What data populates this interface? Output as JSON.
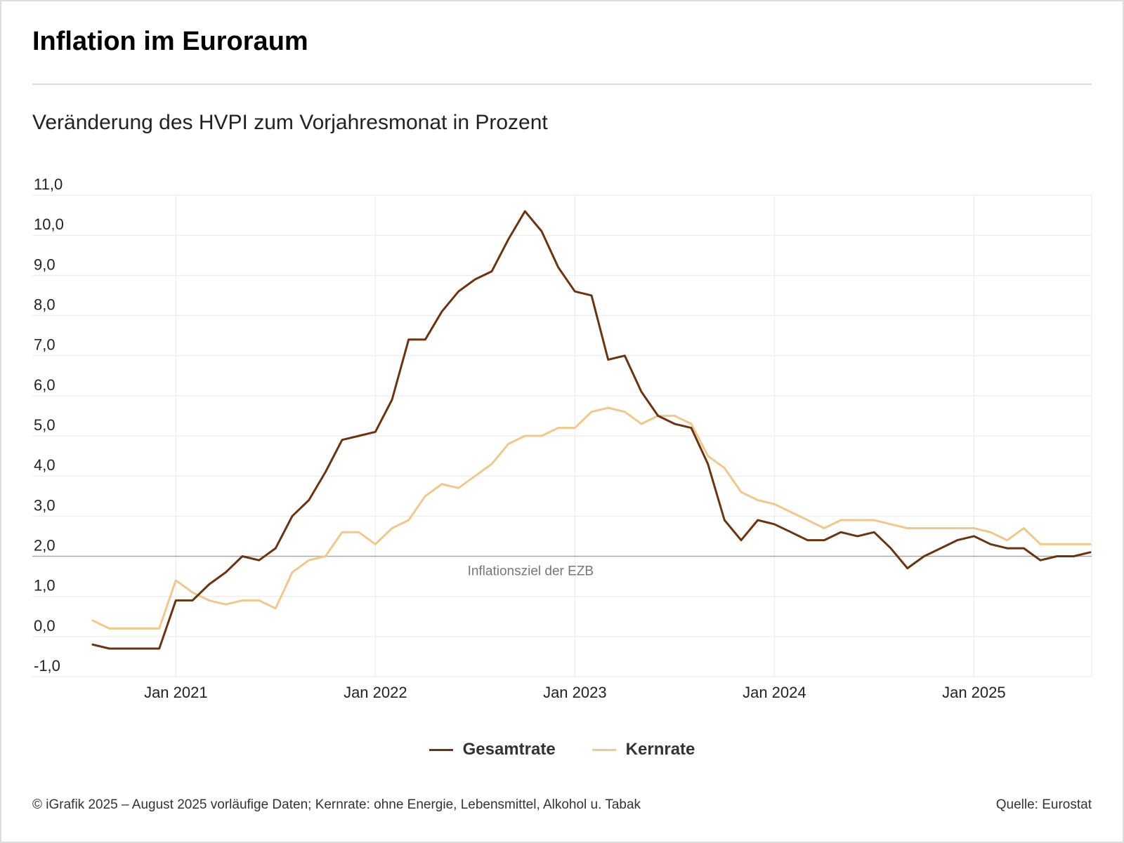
{
  "header": {
    "title": "Inflation im Euroraum",
    "subtitle": "Veränderung des HVPI zum Vorjahresmonat in Prozent"
  },
  "footer": {
    "note": "© iGrafik 2025 – August 2025 vorläufige Daten; Kernrate: ohne Energie, Lebensmittel, Alkohol u. Tabak",
    "source": "Quelle: Eurostat"
  },
  "colors": {
    "gesamtrate": "#6b3410",
    "kernrate": "#f0c98a",
    "grid": "#ececec",
    "target_line": "#aaaaaa"
  },
  "chart_data": {
    "type": "line",
    "title": "Inflation im Euroraum",
    "subtitle": "Veränderung des HVPI zum Vorjahresmonat in Prozent",
    "ylim": [
      -1.0,
      11.0
    ],
    "y_ticks": [
      "11,0",
      "10,0",
      "9,0",
      "8,0",
      "7,0",
      "6,0",
      "5,0",
      "4,0",
      "3,0",
      "2,0",
      "1,0",
      "0,0",
      "-1,0"
    ],
    "y_tick_values": [
      11,
      10,
      9,
      8,
      7,
      6,
      5,
      4,
      3,
      2,
      1,
      0,
      -1
    ],
    "x_start": "2020-08",
    "x_end": "2025-08",
    "x_ticks": [
      {
        "label": "Jan 2021",
        "date": "2021-01"
      },
      {
        "label": "Jan 2022",
        "date": "2022-01"
      },
      {
        "label": "Jan 2023",
        "date": "2023-01"
      },
      {
        "label": "Jan 2024",
        "date": "2024-01"
      },
      {
        "label": "Jan 2025",
        "date": "2025-01"
      }
    ],
    "grid": true,
    "legend_position": "bottom",
    "reference_line": {
      "value": 2.0,
      "label": "Inflationsziel der EZB"
    },
    "x": [
      "2020-08",
      "2020-09",
      "2020-10",
      "2020-11",
      "2020-12",
      "2021-01",
      "2021-02",
      "2021-03",
      "2021-04",
      "2021-05",
      "2021-06",
      "2021-07",
      "2021-08",
      "2021-09",
      "2021-10",
      "2021-11",
      "2021-12",
      "2022-01",
      "2022-02",
      "2022-03",
      "2022-04",
      "2022-05",
      "2022-06",
      "2022-07",
      "2022-08",
      "2022-09",
      "2022-10",
      "2022-11",
      "2022-12",
      "2023-01",
      "2023-02",
      "2023-03",
      "2023-04",
      "2023-05",
      "2023-06",
      "2023-07",
      "2023-08",
      "2023-09",
      "2023-10",
      "2023-11",
      "2023-12",
      "2024-01",
      "2024-02",
      "2024-03",
      "2024-04",
      "2024-05",
      "2024-06",
      "2024-07",
      "2024-08",
      "2024-09",
      "2024-10",
      "2024-11",
      "2024-12",
      "2025-01",
      "2025-02",
      "2025-03",
      "2025-04",
      "2025-05",
      "2025-06",
      "2025-07",
      "2025-08"
    ],
    "series": [
      {
        "name": "Gesamtrate",
        "color": "#6b3410",
        "values": [
          -0.2,
          -0.3,
          -0.3,
          -0.3,
          -0.3,
          0.9,
          0.9,
          1.3,
          1.6,
          2.0,
          1.9,
          2.2,
          3.0,
          3.4,
          4.1,
          4.9,
          5.0,
          5.1,
          5.9,
          7.4,
          7.4,
          8.1,
          8.6,
          8.9,
          9.1,
          9.9,
          10.6,
          10.1,
          9.2,
          8.6,
          8.5,
          6.9,
          7.0,
          6.1,
          5.5,
          5.3,
          5.2,
          4.3,
          2.9,
          2.4,
          2.9,
          2.8,
          2.6,
          2.4,
          2.4,
          2.6,
          2.5,
          2.6,
          2.2,
          1.7,
          2.0,
          2.2,
          2.4,
          2.5,
          2.3,
          2.2,
          2.2,
          1.9,
          2.0,
          2.0,
          2.1
        ]
      },
      {
        "name": "Kernrate",
        "color": "#f0c98a",
        "values": [
          0.4,
          0.2,
          0.2,
          0.2,
          0.2,
          1.4,
          1.1,
          0.9,
          0.8,
          0.9,
          0.9,
          0.7,
          1.6,
          1.9,
          2.0,
          2.6,
          2.6,
          2.3,
          2.7,
          2.9,
          3.5,
          3.8,
          3.7,
          4.0,
          4.3,
          4.8,
          5.0,
          5.0,
          5.2,
          5.2,
          5.6,
          5.7,
          5.6,
          5.3,
          5.5,
          5.5,
          5.3,
          4.5,
          4.2,
          3.6,
          3.4,
          3.3,
          3.1,
          2.9,
          2.7,
          2.9,
          2.9,
          2.9,
          2.8,
          2.7,
          2.7,
          2.7,
          2.7,
          2.7,
          2.6,
          2.4,
          2.7,
          2.3,
          2.3,
          2.3,
          2.3
        ]
      }
    ]
  }
}
